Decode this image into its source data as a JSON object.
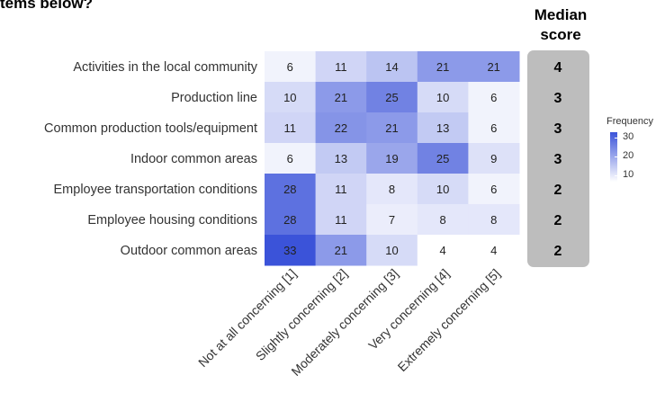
{
  "header": {
    "partial_title": "tems below?",
    "median_label_line1": "Median",
    "median_label_line2": "score"
  },
  "legend": {
    "title": "Frequency",
    "ticks": [
      30,
      20,
      10
    ]
  },
  "colors": {
    "low": "#ffffff",
    "high": "#3b53d9",
    "median_panel": "#bdbdbd"
  },
  "chart_data": {
    "type": "heatmap",
    "rows": [
      "Activities in the local community",
      "Production line",
      "Common production tools/equipment",
      "Indoor common areas",
      "Employee transportation conditions",
      "Employee housing conditions",
      "Outdoor common areas"
    ],
    "columns": [
      "Not at all concerning [1]",
      "Slightly concerning [2]",
      "Moderately concerning [3]",
      "Very concerning [4]",
      "Extremely concerning [5]"
    ],
    "values": [
      [
        6,
        11,
        14,
        21,
        21
      ],
      [
        10,
        21,
        25,
        10,
        6
      ],
      [
        11,
        22,
        21,
        13,
        6
      ],
      [
        6,
        13,
        19,
        25,
        9
      ],
      [
        28,
        11,
        8,
        10,
        6
      ],
      [
        28,
        11,
        7,
        8,
        8
      ],
      [
        33,
        21,
        10,
        4,
        4
      ]
    ],
    "median_scores": [
      4,
      3,
      3,
      3,
      2,
      2,
      2
    ],
    "color_range": [
      4,
      33
    ],
    "legend_title": "Frequency",
    "legend_placement": "right"
  }
}
